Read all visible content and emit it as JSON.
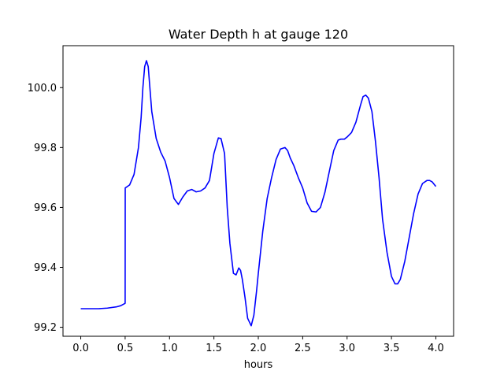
{
  "chart_data": {
    "type": "line",
    "title": "Water Depth h at gauge 120",
    "xlabel": "hours",
    "ylabel": "",
    "xlim": [
      -0.2,
      4.2
    ],
    "ylim": [
      99.17,
      100.14
    ],
    "xticks": [
      0.0,
      0.5,
      1.0,
      1.5,
      2.0,
      2.5,
      3.0,
      3.5,
      4.0
    ],
    "xtick_labels": [
      "0.0",
      "0.5",
      "1.0",
      "1.5",
      "2.0",
      "2.5",
      "3.0",
      "3.5",
      "4.0"
    ],
    "yticks": [
      99.2,
      99.4,
      99.6,
      99.8,
      100.0
    ],
    "ytick_labels": [
      "99.2",
      "99.4",
      "99.6",
      "99.8",
      "100.0"
    ],
    "grid": false,
    "legend": false,
    "series": [
      {
        "color": "#0000ff",
        "x": [
          0.0,
          0.1,
          0.2,
          0.3,
          0.4,
          0.45,
          0.5,
          0.501,
          0.55,
          0.6,
          0.65,
          0.68,
          0.7,
          0.72,
          0.74,
          0.76,
          0.8,
          0.85,
          0.9,
          0.95,
          1.0,
          1.05,
          1.1,
          1.15,
          1.2,
          1.25,
          1.3,
          1.35,
          1.4,
          1.45,
          1.5,
          1.55,
          1.58,
          1.62,
          1.65,
          1.68,
          1.72,
          1.75,
          1.78,
          1.8,
          1.82,
          1.85,
          1.88,
          1.92,
          1.95,
          1.98,
          2.0,
          2.05,
          2.1,
          2.15,
          2.2,
          2.25,
          2.3,
          2.33,
          2.36,
          2.4,
          2.45,
          2.5,
          2.55,
          2.6,
          2.65,
          2.7,
          2.75,
          2.8,
          2.85,
          2.9,
          2.93,
          2.97,
          3.0,
          3.05,
          3.1,
          3.15,
          3.18,
          3.21,
          3.24,
          3.28,
          3.32,
          3.36,
          3.4,
          3.45,
          3.5,
          3.54,
          3.57,
          3.6,
          3.65,
          3.7,
          3.75,
          3.8,
          3.85,
          3.9,
          3.93,
          3.96,
          4.0
        ],
        "y": [
          99.262,
          99.262,
          99.262,
          99.264,
          99.268,
          99.272,
          99.28,
          99.665,
          99.675,
          99.71,
          99.8,
          99.9,
          100.0,
          100.07,
          100.09,
          100.07,
          99.92,
          99.83,
          99.785,
          99.755,
          99.7,
          99.63,
          99.61,
          99.635,
          99.655,
          99.66,
          99.652,
          99.655,
          99.665,
          99.69,
          99.78,
          99.832,
          99.83,
          99.78,
          99.6,
          99.48,
          99.38,
          99.375,
          99.398,
          99.39,
          99.36,
          99.3,
          99.23,
          99.205,
          99.24,
          99.32,
          99.38,
          99.52,
          99.63,
          99.7,
          99.76,
          99.795,
          99.8,
          99.79,
          99.765,
          99.74,
          99.7,
          99.665,
          99.615,
          99.587,
          99.585,
          99.6,
          99.65,
          99.72,
          99.79,
          99.825,
          99.828,
          99.828,
          99.835,
          99.85,
          99.885,
          99.94,
          99.97,
          99.975,
          99.965,
          99.92,
          99.82,
          99.7,
          99.56,
          99.45,
          99.37,
          99.345,
          99.345,
          99.36,
          99.42,
          99.5,
          99.58,
          99.645,
          99.68,
          99.69,
          99.69,
          99.685,
          99.67
        ]
      }
    ]
  }
}
